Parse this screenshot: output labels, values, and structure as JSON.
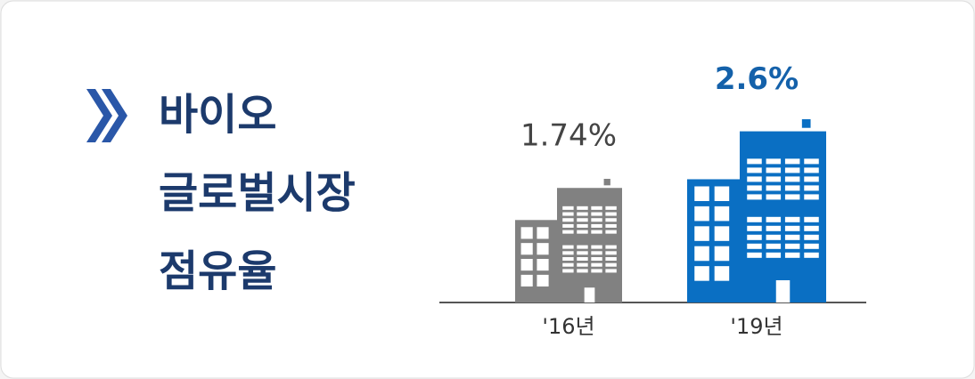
{
  "chart_data": {
    "type": "building",
    "title": [
      "바이오",
      "글로벌시장",
      "점유율"
    ],
    "categories": [
      "'16년",
      "'19년"
    ],
    "values": [
      1.74,
      2.6
    ],
    "value_labels": [
      "1.74%",
      "2.6%"
    ],
    "colors": [
      "#818181",
      "#0a6fc3"
    ],
    "label_colors": [
      "#444444",
      "#1461aa"
    ]
  }
}
